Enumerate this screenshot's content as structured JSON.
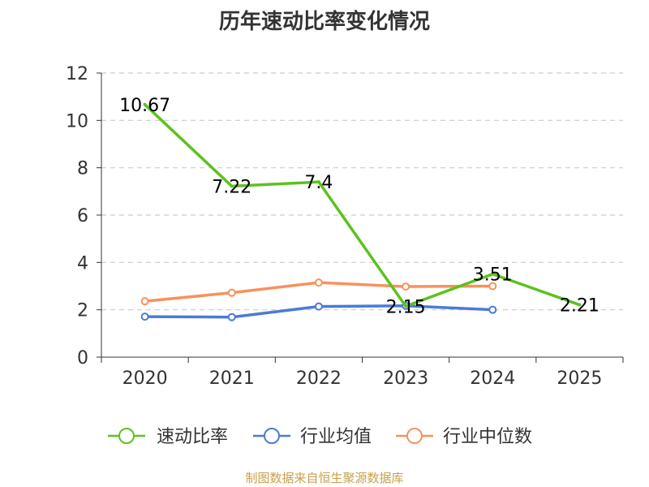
{
  "chart_data": {
    "type": "line",
    "title": "历年速动比率变化情况",
    "categories": [
      "2020",
      "2021",
      "2022",
      "2023",
      "2024",
      "2025"
    ],
    "ylim": [
      0,
      12
    ],
    "yticks": [
      0,
      2,
      4,
      6,
      8,
      10,
      12
    ],
    "grid": true,
    "legend_position": "bottom",
    "series": [
      {
        "name": "速动比率",
        "color": "#5cc21e",
        "values": [
          10.67,
          7.22,
          7.4,
          2.15,
          3.51,
          2.21
        ],
        "labels": [
          "10.67",
          "7.22",
          "7.4",
          "2.15",
          "3.51",
          "2.21"
        ]
      },
      {
        "name": "行业均值",
        "color": "#4a7bd6",
        "values": [
          1.71,
          1.69,
          2.14,
          2.17,
          2.0,
          null
        ]
      },
      {
        "name": "行业中位数",
        "color": "#f7925c",
        "values": [
          2.36,
          2.72,
          3.15,
          2.98,
          3.0,
          null
        ]
      }
    ],
    "source": "制图数据来自恒生聚源数据库"
  }
}
